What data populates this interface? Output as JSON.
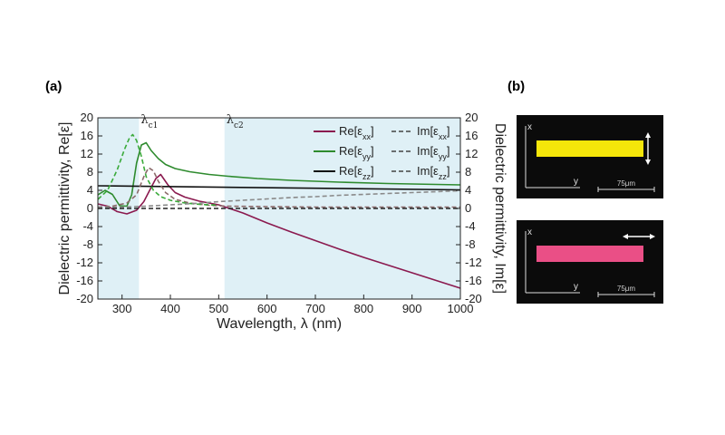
{
  "panel_a_label": "(a)",
  "panel_b_label": "(b)",
  "chart_data": {
    "type": "line",
    "xlabel": "Wavelength, λ (nm)",
    "ylabel_left": "Dielectric permittivity, Re[ε]",
    "ylabel_right": "Dielectric permittivity, Im[ε]",
    "xlim": [
      250,
      1000
    ],
    "ylim": [
      -20,
      20
    ],
    "x_ticks": [
      300,
      400,
      500,
      600,
      700,
      800,
      900,
      1000
    ],
    "x_tick_labels": [
      "300",
      "400",
      "500",
      "600",
      "700",
      "800",
      "900",
      "1000"
    ],
    "y_ticks": [
      20,
      16,
      12,
      8,
      4,
      0,
      -4,
      -8,
      -12,
      -16,
      -20
    ],
    "y_tick_labels": [
      "20",
      "16",
      "12",
      "8",
      "4",
      "0",
      "-4",
      "-8",
      "-12",
      "-16",
      "-20"
    ],
    "shaded_regions": [
      [
        250,
        335
      ],
      [
        512,
        1000
      ]
    ],
    "annotations": [
      {
        "label": "λc1",
        "x": 335,
        "y": 19
      },
      {
        "label": "λc2",
        "x": 512,
        "y": 19
      }
    ],
    "legend": {
      "placement": "top-right",
      "entries": [
        {
          "label": "Re[εxx]",
          "series": "re_xx"
        },
        {
          "label": "Im[εxx]",
          "series": "im_xx"
        },
        {
          "label": "Re[εyy]",
          "series": "re_yy"
        },
        {
          "label": "Im[εyy]",
          "series": "im_yy"
        },
        {
          "label": "Re[εzz]",
          "series": "re_zz"
        },
        {
          "label": "Im[εzz]",
          "series": "im_zz"
        }
      ]
    },
    "series": [
      {
        "id": "re_xx",
        "name": "Re[εxx]",
        "color": "#8b1a4f",
        "dash": "solid",
        "x": [
          250,
          270,
          290,
          310,
          330,
          345,
          360,
          370,
          380,
          395,
          410,
          430,
          460,
          500,
          550,
          600,
          650,
          700,
          750,
          800,
          850,
          900,
          950,
          1000
        ],
        "y": [
          1.0,
          0.5,
          -0.7,
          -1.2,
          -0.4,
          1.5,
          4.6,
          6.6,
          7.5,
          5.2,
          3.5,
          2.5,
          1.6,
          0.8,
          -1.0,
          -3.2,
          -5.2,
          -7.1,
          -9.0,
          -10.8,
          -12.5,
          -14.2,
          -15.9,
          -17.6
        ]
      },
      {
        "id": "re_yy",
        "name": "Re[εyy]",
        "color": "#2e8b2e",
        "dash": "solid",
        "x": [
          250,
          265,
          280,
          295,
          310,
          320,
          330,
          340,
          350,
          360,
          375,
          390,
          410,
          440,
          480,
          520,
          580,
          650,
          750,
          850,
          1000
        ],
        "y": [
          3.0,
          4.0,
          3.1,
          0.6,
          0.5,
          3.0,
          10.0,
          14.0,
          14.5,
          12.8,
          11.0,
          9.7,
          8.8,
          8.1,
          7.5,
          7.1,
          6.6,
          6.2,
          5.8,
          5.5,
          5.2
        ]
      },
      {
        "id": "re_zz",
        "name": "Re[εzz]",
        "color": "#111111",
        "dash": "solid",
        "x": [
          250,
          1000
        ],
        "y": [
          5.0,
          4.1
        ]
      },
      {
        "id": "im_xx",
        "name": "Im[εxx]",
        "color": "#8b6a6a",
        "dash": "dash",
        "x": [
          250,
          280,
          310,
          330,
          345,
          355,
          365,
          375,
          390,
          410,
          440,
          480,
          520,
          600,
          700,
          800,
          900,
          1000
        ],
        "y": [
          0.3,
          0.5,
          1.2,
          3.0,
          7.0,
          9.0,
          8.3,
          6.0,
          3.5,
          2.0,
          1.2,
          0.7,
          0.5,
          0.4,
          0.3,
          0.3,
          0.3,
          0.3
        ]
      },
      {
        "id": "im_yy",
        "name": "Im[εyy]",
        "color": "#3aaa3a",
        "dash": "dash",
        "x": [
          250,
          270,
          290,
          305,
          315,
          322,
          330,
          340,
          350,
          365,
          380,
          400,
          430,
          460,
          500
        ],
        "y": [
          2.0,
          4.0,
          8.5,
          13.0,
          15.5,
          16.3,
          15.0,
          11.5,
          7.0,
          4.0,
          2.6,
          1.8,
          1.2,
          0.9,
          0.7
        ]
      },
      {
        "id": "im_zz",
        "name": "Im[εzz]",
        "color": "#8a8a8a",
        "dash": "dash",
        "x": [
          250,
          300,
          350,
          400,
          450,
          500,
          550,
          600,
          650,
          700,
          750,
          800,
          850,
          900,
          950,
          1000
        ],
        "y": [
          0.2,
          0.3,
          0.5,
          0.8,
          1.1,
          1.5,
          1.8,
          2.1,
          2.4,
          2.6,
          2.9,
          3.1,
          3.3,
          3.5,
          3.7,
          3.9
        ]
      },
      {
        "id": "zero_dash",
        "name": "",
        "color": "#222222",
        "dash": "dash-bold",
        "x": [
          250,
          1000
        ],
        "y": [
          0,
          0
        ]
      }
    ]
  },
  "micrographs": [
    {
      "axis_x": "x",
      "axis_y": "y",
      "scale": "75μm",
      "strip_color": "#f5e60a",
      "arrow": "vertical"
    },
    {
      "axis_x": "x",
      "axis_y": "y",
      "scale": "75μm",
      "strip_color": "#ea4f86",
      "arrow": "horizontal"
    }
  ],
  "colors": {
    "shade": "#dff0f6",
    "micro_bg": "#0b0b0b"
  }
}
